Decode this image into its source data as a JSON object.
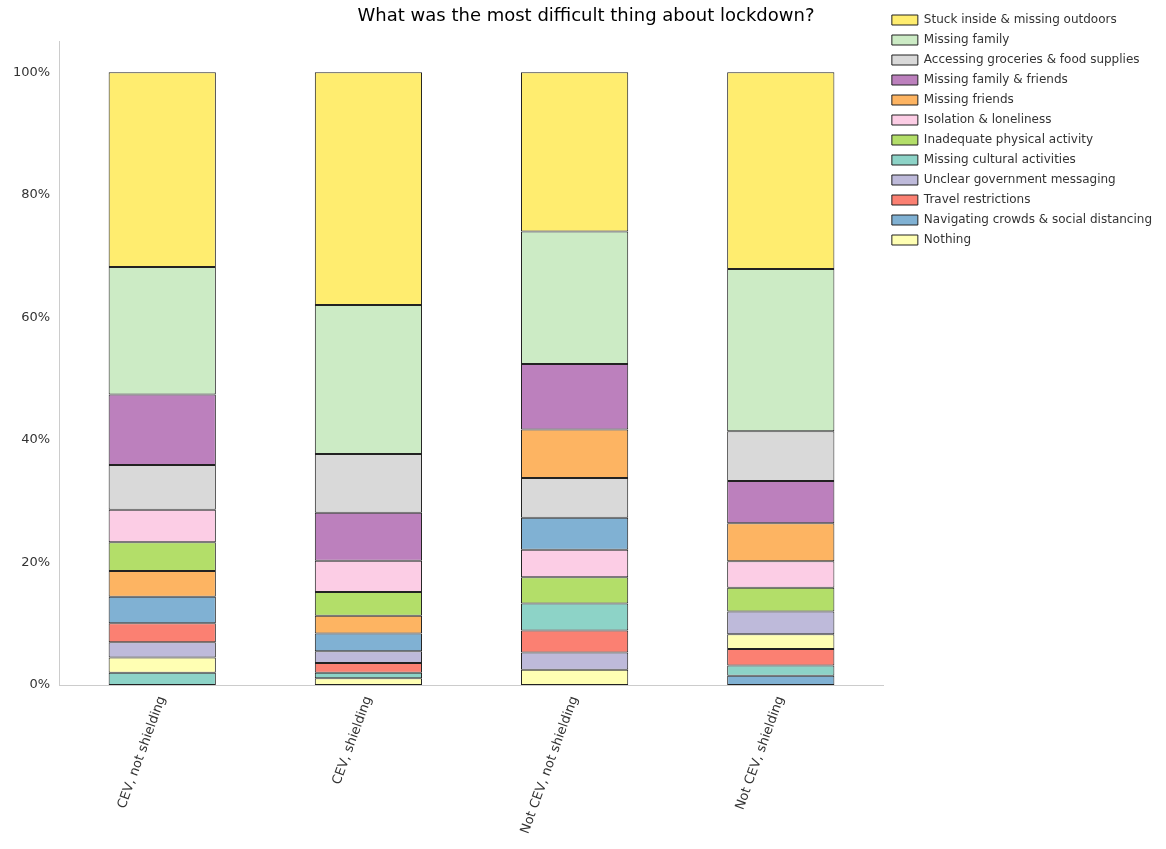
{
  "chart_data": {
    "type": "bar",
    "title": "What was the most difficult thing about lockdown?",
    "categories": [
      "CEV, not shielding",
      "CEV, shielding",
      "Not CEV, not shielding",
      "Not CEV, shielding"
    ],
    "ylim": [
      0,
      105
    ],
    "yticks": [
      {
        "value": 0,
        "label": "0%"
      },
      {
        "value": 20,
        "label": "20%"
      },
      {
        "value": 40,
        "label": "40%"
      },
      {
        "value": 60,
        "label": "60%"
      },
      {
        "value": 80,
        "label": "80%"
      },
      {
        "value": 100,
        "label": "100%"
      }
    ],
    "grid": false,
    "legend": "right",
    "series": [
      {
        "name": "Stuck inside & missing outdoors",
        "color": "#ffed6f",
        "values": [
          31.8,
          38.0,
          26.0,
          32.1
        ],
        "base": [
          68.2,
          62.0,
          74.0,
          67.9
        ]
      },
      {
        "name": "Missing family",
        "color": "#ccebc5",
        "values": [
          20.8,
          24.3,
          21.6,
          26.5
        ],
        "base": [
          47.4,
          37.7,
          52.4,
          41.4
        ]
      },
      {
        "name": "Accessing groceries & food supplies",
        "color": "#d9d9d9",
        "values": [
          7.3,
          9.6,
          6.5,
          8.1
        ],
        "base": [
          28.6,
          28.1,
          27.3,
          33.3
        ]
      },
      {
        "name": "Missing family & friends",
        "color": "#bc80bd",
        "values": [
          11.5,
          7.8,
          10.7,
          6.9
        ],
        "base": [
          35.9,
          20.3,
          41.7,
          26.4
        ]
      },
      {
        "name": "Missing friends",
        "color": "#fdb462",
        "values": [
          4.2,
          2.9,
          7.9,
          6.2
        ],
        "base": [
          14.4,
          8.4,
          33.8,
          20.2
        ]
      },
      {
        "name": "Isolation & loneliness",
        "color": "#fccde5",
        "values": [
          5.3,
          5.1,
          4.5,
          4.3
        ],
        "base": [
          23.3,
          15.2,
          17.6,
          15.9
        ]
      },
      {
        "name": "Inadequate physical activity",
        "color": "#b3de69",
        "values": [
          4.7,
          3.9,
          4.3,
          3.9
        ],
        "base": [
          18.6,
          11.3,
          13.3,
          12.0
        ]
      },
      {
        "name": "Missing cultural activities",
        "color": "#8dd3c7",
        "values": [
          2.0,
          0.9,
          4.4,
          1.7
        ],
        "base": [
          0,
          1.1,
          8.9,
          1.5
        ]
      },
      {
        "name": "Unclear government messaging",
        "color": "#bebada",
        "values": [
          2.5,
          1.9,
          2.8,
          3.7
        ],
        "base": [
          4.5,
          3.6,
          2.5,
          8.3
        ]
      },
      {
        "name": "Travel restrictions",
        "color": "#fb8072",
        "values": [
          3.1,
          1.6,
          3.6,
          2.7
        ],
        "base": [
          7.0,
          2.0,
          5.3,
          3.2
        ]
      },
      {
        "name": "Navigating crowds & social distancing",
        "color": "#80b1d3",
        "values": [
          4.3,
          2.9,
          5.2,
          1.5
        ],
        "base": [
          10.1,
          5.5,
          22.1,
          0
        ]
      },
      {
        "name": "Nothing",
        "color": "#ffffb3",
        "values": [
          2.5,
          1.1,
          2.5,
          2.4
        ],
        "base": [
          2.0,
          0,
          0,
          5.9
        ]
      }
    ]
  }
}
